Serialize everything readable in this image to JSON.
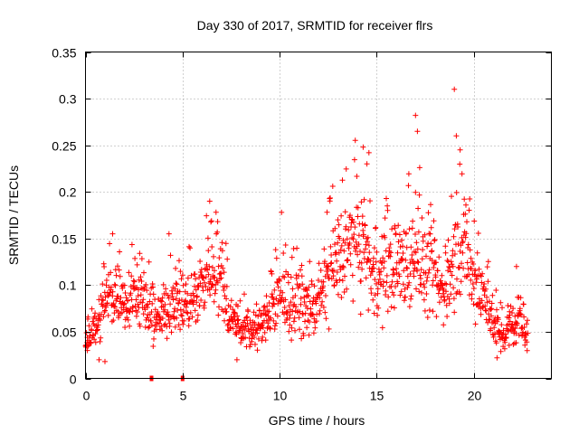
{
  "chart_data": {
    "type": "scatter",
    "title": "Day 330 of 2017, SRMTID for receiver flrs",
    "xlabel": "GPS time / hours",
    "ylabel": "SRMTID / TECUs",
    "xlim": [
      0,
      24
    ],
    "ylim": [
      0,
      0.35
    ],
    "x_ticks": [
      0,
      5,
      10,
      15,
      20
    ],
    "x_tick_labels": [
      "0",
      "5",
      "10",
      "15",
      "20"
    ],
    "y_ticks": [
      0,
      0.05,
      0.1,
      0.15,
      0.2,
      0.25,
      0.3,
      0.35
    ],
    "y_tick_labels": [
      "0",
      "0.05",
      "0.1",
      "0.15",
      "0.2",
      "0.25",
      "0.3",
      "0.35"
    ],
    "grid": true,
    "marker": "plus",
    "color": "#ff0000",
    "series": [
      {
        "name": "SRMTID",
        "x_start": 0.0,
        "x_step": 0.0167,
        "base_trend": [
          [
            0.0,
            0.04
          ],
          [
            0.5,
            0.055
          ],
          [
            1.0,
            0.08
          ],
          [
            1.5,
            0.095
          ],
          [
            2.0,
            0.085
          ],
          [
            2.5,
            0.09
          ],
          [
            3.0,
            0.085
          ],
          [
            3.5,
            0.06
          ],
          [
            4.0,
            0.07
          ],
          [
            4.5,
            0.085
          ],
          [
            5.0,
            0.075
          ],
          [
            5.5,
            0.085
          ],
          [
            6.0,
            0.1
          ],
          [
            6.5,
            0.125
          ],
          [
            7.0,
            0.105
          ],
          [
            7.5,
            0.06
          ],
          [
            8.0,
            0.055
          ],
          [
            8.5,
            0.05
          ],
          [
            9.0,
            0.055
          ],
          [
            9.5,
            0.07
          ],
          [
            10.0,
            0.085
          ],
          [
            10.5,
            0.08
          ],
          [
            11.0,
            0.08
          ],
          [
            11.5,
            0.075
          ],
          [
            12.0,
            0.08
          ],
          [
            12.5,
            0.11
          ],
          [
            13.0,
            0.13
          ],
          [
            13.5,
            0.14
          ],
          [
            14.0,
            0.15
          ],
          [
            14.5,
            0.13
          ],
          [
            15.0,
            0.1
          ],
          [
            15.5,
            0.115
          ],
          [
            16.0,
            0.125
          ],
          [
            16.5,
            0.12
          ],
          [
            17.0,
            0.14
          ],
          [
            17.5,
            0.115
          ],
          [
            18.0,
            0.105
          ],
          [
            18.5,
            0.09
          ],
          [
            19.0,
            0.13
          ],
          [
            19.5,
            0.14
          ],
          [
            20.0,
            0.1
          ],
          [
            20.5,
            0.09
          ],
          [
            21.0,
            0.06
          ],
          [
            21.5,
            0.045
          ],
          [
            22.0,
            0.06
          ],
          [
            22.5,
            0.05
          ],
          [
            22.8,
            0.045
          ]
        ],
        "spread": 0.35,
        "highlights": [
          [
            19.0,
            0.31
          ],
          [
            17.0,
            0.282
          ],
          [
            19.1,
            0.26
          ],
          [
            17.1,
            0.265
          ],
          [
            14.3,
            0.248
          ],
          [
            14.6,
            0.242
          ],
          [
            14.5,
            0.23
          ],
          [
            19.3,
            0.245
          ],
          [
            6.4,
            0.19
          ],
          [
            10.1,
            0.178
          ],
          [
            1.4,
            0.155
          ],
          [
            4.3,
            0.155
          ],
          [
            22.2,
            0.12
          ],
          [
            0.7,
            0.02
          ],
          [
            1.0,
            0.018
          ],
          [
            7.8,
            0.02
          ],
          [
            21.2,
            0.022
          ],
          [
            0.1,
            0.03
          ]
        ],
        "zero_points": [
          [
            3.4,
            0.0
          ],
          [
            5.0,
            0.0
          ]
        ],
        "n_points": 1380,
        "seed": 330
      }
    ]
  }
}
